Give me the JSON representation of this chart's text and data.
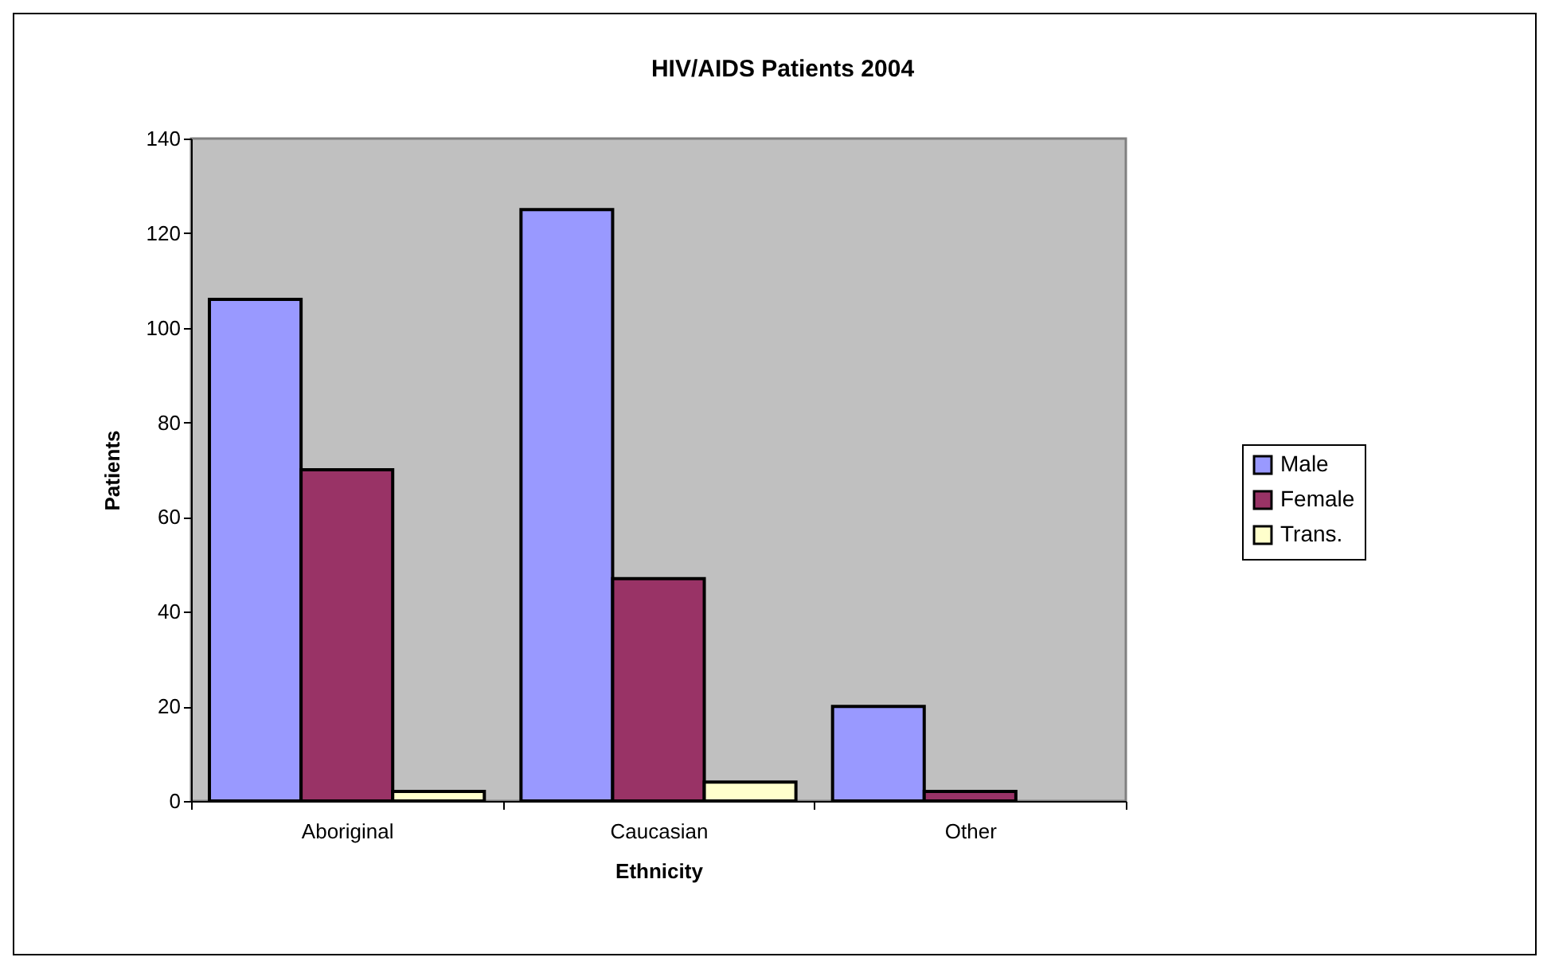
{
  "chart_data": {
    "type": "bar",
    "title": "HIV/AIDS Patients 2004",
    "xlabel": "Ethnicity",
    "ylabel": "Patients",
    "categories": [
      "Aboriginal",
      "Caucasian",
      "Other"
    ],
    "series": [
      {
        "name": "Male",
        "color": "#9999ff",
        "values": [
          106,
          125,
          20
        ]
      },
      {
        "name": "Female",
        "color": "#993366",
        "values": [
          70,
          47,
          2
        ]
      },
      {
        "name": "Trans.",
        "color": "#ffffcc",
        "values": [
          2,
          4,
          null
        ]
      }
    ],
    "ylim": [
      0,
      140
    ],
    "yticks": [
      0,
      20,
      40,
      60,
      80,
      100,
      120,
      140
    ],
    "grid": false,
    "legend": "right"
  }
}
